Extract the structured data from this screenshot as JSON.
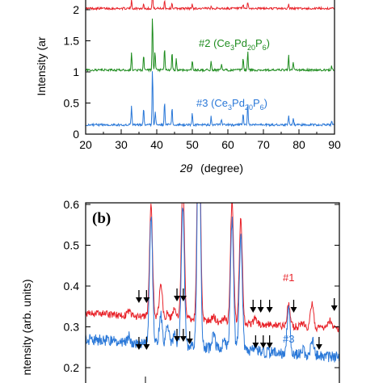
{
  "chart_data": [
    {
      "type": "line",
      "panel": "a",
      "xlabel_symbol": "2θ",
      "xlabel_unit": "(degree)",
      "ylabel_visible": "Intensity (ar",
      "xlim": [
        20,
        90
      ],
      "ylim": [
        0,
        2.1
      ],
      "x_ticks": [
        "20",
        "30",
        "40",
        "50",
        "60",
        "70",
        "80",
        "90"
      ],
      "y_ticks": [
        "0",
        "0.5",
        "1",
        "1.5",
        "2"
      ],
      "series": [
        {
          "name": "",
          "color": "#e8232a",
          "baseline": 2.02,
          "peaks": [
            [
              32.9,
              0.13
            ],
            [
              36.3,
              0.07
            ],
            [
              38.8,
              0.28
            ],
            [
              42.2,
              0.13
            ],
            [
              44.3,
              0.09
            ],
            [
              50.0,
              0.07
            ],
            [
              55.3,
              0.05
            ],
            [
              64.3,
              0.06
            ],
            [
              65.6,
              0.1
            ],
            [
              77.1,
              0.07
            ]
          ]
        },
        {
          "name": "#2 (Ce3Pd20P6)",
          "color": "#1e8c1e",
          "baseline": 1.03,
          "peaks": [
            [
              32.9,
              0.27
            ],
            [
              36.3,
              0.24
            ],
            [
              38.8,
              0.87
            ],
            [
              39.5,
              0.3
            ],
            [
              42.2,
              0.36
            ],
            [
              44.3,
              0.28
            ],
            [
              45.5,
              0.18
            ],
            [
              50.0,
              0.16
            ],
            [
              55.3,
              0.14
            ],
            [
              58.2,
              0.1
            ],
            [
              64.3,
              0.2
            ],
            [
              65.6,
              0.31
            ],
            [
              77.1,
              0.25
            ],
            [
              78.4,
              0.14
            ],
            [
              89.2,
              0.06
            ]
          ]
        },
        {
          "name": "#3 (Ce3Pd20P6)",
          "color": "#2a78d8",
          "baseline": 0.15,
          "peaks": [
            [
              32.9,
              0.3
            ],
            [
              36.3,
              0.27
            ],
            [
              38.8,
              0.9
            ],
            [
              39.6,
              0.22
            ],
            [
              42.2,
              0.38
            ],
            [
              44.3,
              0.3
            ],
            [
              50.0,
              0.19
            ],
            [
              55.3,
              0.14
            ],
            [
              58.2,
              0.09
            ],
            [
              64.3,
              0.2
            ],
            [
              65.6,
              0.35
            ],
            [
              77.1,
              0.15
            ],
            [
              78.4,
              0.1
            ],
            [
              89.2,
              0.05
            ]
          ]
        }
      ],
      "annotations": [
        {
          "text": "#2 (Ce3Pd20P6)",
          "x": 54.5,
          "y": 1.53,
          "color": "#1e8c1e"
        },
        {
          "text": "#3 (Ce3Pd20P6)",
          "x": 53.5,
          "y": 0.51,
          "color": "#2a78d8"
        }
      ]
    },
    {
      "type": "line",
      "panel": "b",
      "panel_label": "(b)",
      "ylabel_visible": "ntensity (arb. units)",
      "ylim": [
        0.2,
        0.6
      ],
      "xlim": [
        0,
        100
      ],
      "y_ticks": [
        "0.2",
        "0.3",
        "0.4",
        "0.5",
        "0.6"
      ],
      "series": [
        {
          "name": "#1",
          "color": "#e8232a",
          "baseline_start": 0.334,
          "baseline_end": 0.294,
          "peaks": [
            [
              22,
              0.012
            ],
            [
              33.5,
              0.27
            ],
            [
              38.5,
              0.08
            ],
            [
              42,
              0.012
            ],
            [
              45.5,
              0.025
            ],
            [
              49.8,
              0.34
            ],
            [
              58,
              0.6
            ],
            [
              65.5,
              0.012
            ],
            [
              71,
              0.012
            ],
            [
              75,
              0.3
            ],
            [
              79.5,
              0.26
            ],
            [
              87,
              0.015
            ],
            [
              104,
              0.05
            ],
            [
              111,
              0.01
            ],
            [
              116,
              0.06
            ],
            [
              125,
              0.02
            ]
          ]
        },
        {
          "name": "#3",
          "color": "#2a78d8",
          "baseline_start": 0.27,
          "baseline_end": 0.225,
          "peaks": [
            [
              22,
              0.015
            ],
            [
              33.5,
              0.31
            ],
            [
              38.5,
              0.07
            ],
            [
              42,
              0.045
            ],
            [
              45.5,
              0.03
            ],
            [
              49.8,
              0.34
            ],
            [
              58,
              0.62
            ],
            [
              65.5,
              0.035
            ],
            [
              71,
              0.03
            ],
            [
              75,
              0.32
            ],
            [
              79.5,
              0.28
            ],
            [
              87,
              0.01
            ],
            [
              104,
              0.12
            ],
            [
              111,
              0.015
            ],
            [
              116,
              0.04
            ]
          ]
        }
      ],
      "annotations": [
        {
          "text": "#1",
          "x": 105,
          "y": 0.364,
          "color": "#e8232a"
        },
        {
          "text": "#3",
          "x": 105,
          "y": 0.265,
          "color": "#2a78d8"
        }
      ],
      "arrows_series1_x": [
        21,
        24,
        36,
        38.5,
        66,
        69,
        72.5,
        82,
        98,
        128,
        145
      ],
      "arrows_series3_x": [
        21,
        24,
        36,
        38.5,
        41,
        67,
        70,
        72.5,
        92
      ]
    }
  ]
}
